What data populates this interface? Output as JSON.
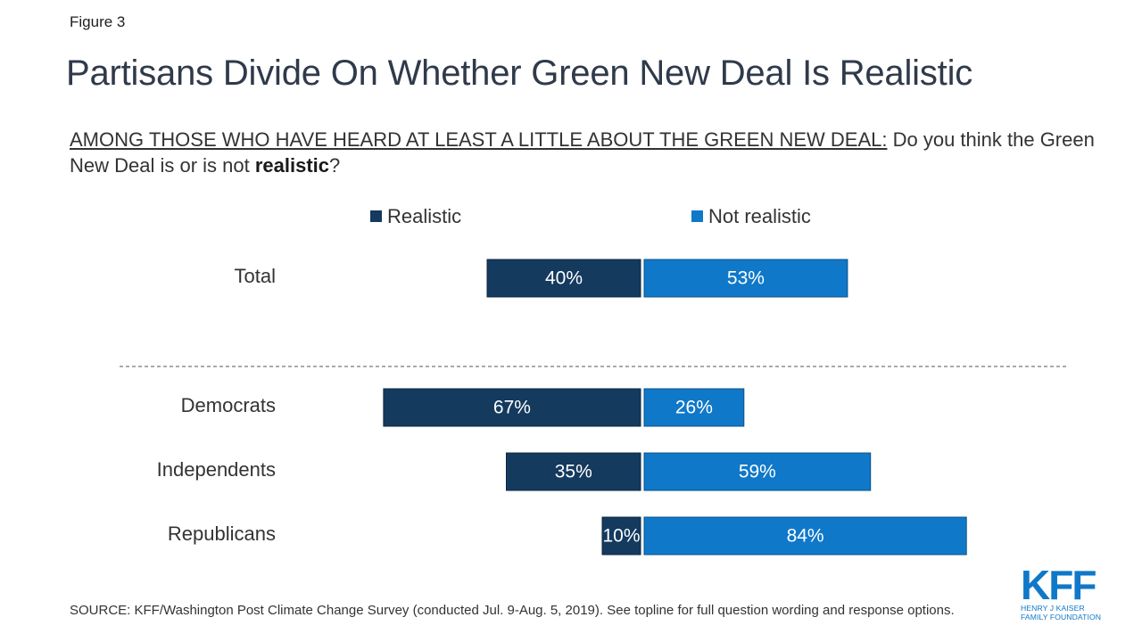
{
  "figure_label": "Figure 3",
  "title": "Partisans Divide On Whether Green New Deal Is Realistic",
  "subtitle": {
    "lead": "AMONG THOSE WHO HAVE HEARD AT LEAST A LITTLE ABOUT THE GREEN NEW DEAL:",
    "text_before": " Do you think the Green New Deal is or is not ",
    "emphasis": "realistic",
    "text_after": "?"
  },
  "source": "SOURCE: KFF/Washington Post Climate Change Survey (conducted Jul. 9-Aug. 5, 2019). See topline for full question wording and response options.",
  "logo": {
    "mark": "KFF",
    "line1": "HENRY J KAISER",
    "line2": "FAMILY FOUNDATION"
  },
  "chart_data": {
    "type": "bar",
    "orientation": "horizontal-diverging",
    "categories": [
      "Total",
      "Democrats",
      "Independents",
      "Republicans"
    ],
    "series": [
      {
        "name": "Realistic",
        "values": [
          40,
          67,
          35,
          10
        ],
        "color": "#143a5e"
      },
      {
        "name": "Not realistic",
        "values": [
          53,
          26,
          59,
          84
        ],
        "color": "#0f78c9"
      }
    ],
    "value_suffix": "%",
    "legend_position": "top",
    "separator_after": "Total",
    "grid": false
  }
}
